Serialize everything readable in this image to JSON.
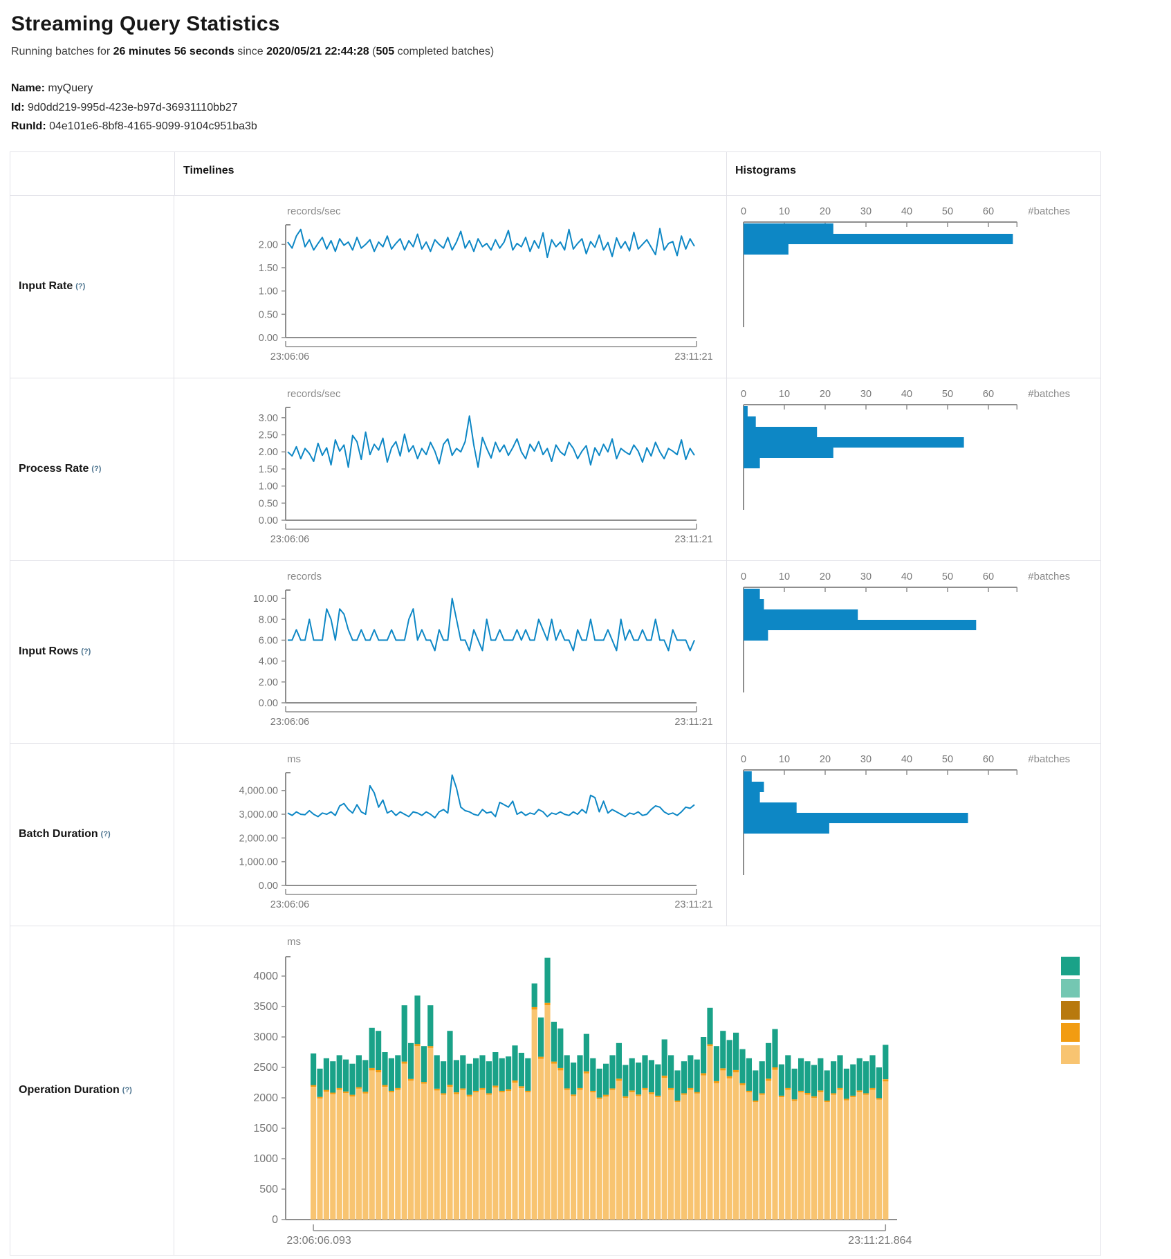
{
  "page": {
    "title": "Streaming Query Statistics",
    "subtitle": {
      "part1": "Running batches for ",
      "duration": "26 minutes 56 seconds",
      "part2": " since ",
      "start_time": "2020/05/21 22:44:28",
      "part3": " (",
      "completed_count": "505",
      "part4": " completed batches)"
    },
    "query": {
      "name_label": "Name:",
      "name_value": " myQuery",
      "id_label": "Id:",
      "id_value": " 9d0dd219-995d-423e-b97d-36931110bb27",
      "runid_label": "RunId:",
      "runid_value": " 04e101e6-8bf8-4165-9099-9104c951ba3b"
    }
  },
  "table": {
    "header_timelines": "Timelines",
    "header_histograms": "Histograms",
    "rows": [
      {
        "label": "Input Rate",
        "help": "(?)"
      },
      {
        "label": "Process Rate",
        "help": "(?)"
      },
      {
        "label": "Input Rows",
        "help": "(?)"
      },
      {
        "label": "Batch Duration",
        "help": "(?)"
      },
      {
        "label": "Operation Duration",
        "help": "(?)"
      }
    ]
  },
  "colors": {
    "blue": "#0d87c5",
    "axis": "#8e8e8e",
    "tick_text": "#767676",
    "unit_text": "#8a8a8a",
    "teal": "#1aa288",
    "light_teal": "#74c7b2",
    "brown": "#b8790e",
    "orange": "#f29c11",
    "light_orange": "#f8c471"
  },
  "chart_data": [
    {
      "type": "line",
      "id": "input_rate",
      "title": "Input Rate",
      "ylabel": "records/sec",
      "x_labels": [
        "23:06:06",
        "23:11:21"
      ],
      "ymax_axis": 2.42,
      "ylim": [
        0,
        2.42
      ],
      "ytick_values": [
        2,
        1.5,
        1,
        0.5,
        0
      ],
      "ytick_labels": [
        "2.00",
        "1.50",
        "1.00",
        "0.50",
        "0.00"
      ],
      "values": [
        2.05,
        1.92,
        2.18,
        2.32,
        1.95,
        2.1,
        1.88,
        2.02,
        2.15,
        1.9,
        2.08,
        1.85,
        2.12,
        1.98,
        2.05,
        1.88,
        2.15,
        1.92,
        2.0,
        2.1,
        1.85,
        2.05,
        1.95,
        2.18,
        1.9,
        2.02,
        2.12,
        1.88,
        2.08,
        1.95,
        2.22,
        1.9,
        2.05,
        1.85,
        2.1,
        2.0,
        1.92,
        2.15,
        1.88,
        2.05,
        2.28,
        1.92,
        2.08,
        1.85,
        2.12,
        1.95,
        2.02,
        1.88,
        2.1,
        1.92,
        2.05,
        2.3,
        1.88,
        2.02,
        1.95,
        2.15,
        1.85,
        2.08,
        1.92,
        2.25,
        1.72,
        2.1,
        1.95,
        2.05,
        1.88,
        2.32,
        1.9,
        2.02,
        2.12,
        1.8,
        2.06,
        1.94,
        2.2,
        1.88,
        2.04,
        1.74,
        2.14,
        1.92,
        2.06,
        1.86,
        2.26,
        1.9,
        2.0,
        2.1,
        1.94,
        1.78,
        2.34,
        1.88,
        2.02,
        2.06,
        1.76,
        2.18,
        1.9,
        2.12,
        1.96
      ]
    },
    {
      "type": "bar-h",
      "id": "input_rate_hist",
      "xlabel": "#batches",
      "xticks": [
        0,
        10,
        20,
        30,
        40,
        50,
        60
      ],
      "xmax": 67,
      "bars": [
        22,
        66,
        11
      ]
    },
    {
      "type": "line",
      "id": "process_rate",
      "title": "Process Rate",
      "ylabel": "records/sec",
      "x_labels": [
        "23:06:06",
        "23:11:21"
      ],
      "ymax_axis": 3.3,
      "ylim": [
        0,
        3.3
      ],
      "ytick_values": [
        3,
        2.5,
        2,
        1.5,
        1,
        0.5,
        0
      ],
      "ytick_labels": [
        "3.00",
        "2.50",
        "2.00",
        "1.50",
        "1.00",
        "0.50",
        "0.00"
      ],
      "values": [
        2.0,
        1.88,
        2.15,
        1.8,
        2.1,
        1.95,
        1.72,
        2.25,
        1.9,
        2.12,
        1.62,
        2.35,
        2.02,
        2.2,
        1.55,
        2.48,
        2.3,
        1.78,
        2.58,
        1.92,
        2.22,
        2.05,
        2.4,
        1.7,
        2.12,
        2.3,
        1.88,
        2.52,
        2.0,
        2.18,
        1.8,
        2.1,
        1.92,
        2.28,
        2.02,
        1.65,
        2.22,
        2.38,
        1.9,
        2.1,
        2.0,
        2.3,
        3.05,
        2.2,
        1.55,
        2.42,
        2.1,
        1.82,
        2.28,
        2.0,
        2.2,
        1.9,
        2.12,
        2.38,
        2.0,
        1.8,
        2.22,
        2.02,
        2.3,
        1.92,
        2.1,
        1.72,
        2.2,
        2.0,
        1.9,
        2.28,
        2.1,
        1.8,
        2.02,
        2.18,
        1.62,
        2.12,
        1.9,
        2.22,
        2.0,
        2.38,
        1.8,
        2.1,
        2.0,
        1.92,
        2.2,
        2.02,
        1.7,
        2.12,
        1.88,
        2.28,
        2.0,
        1.8,
        2.1,
        2.02,
        1.92,
        2.35,
        1.78,
        2.1,
        1.9
      ]
    },
    {
      "type": "bar-h",
      "id": "process_rate_hist",
      "xlabel": "#batches",
      "xticks": [
        0,
        10,
        20,
        30,
        40,
        50,
        60
      ],
      "xmax": 67,
      "bars": [
        1,
        3,
        18,
        54,
        22,
        4
      ]
    },
    {
      "type": "line",
      "id": "input_rows",
      "title": "Input Rows",
      "ylabel": "records",
      "x_labels": [
        "23:06:06",
        "23:11:21"
      ],
      "ymax_axis": 10.8,
      "ylim": [
        0,
        10.8
      ],
      "ytick_values": [
        10,
        8,
        6,
        4,
        2,
        0
      ],
      "ytick_labels": [
        "10.00",
        "8.00",
        "6.00",
        "4.00",
        "2.00",
        "0.00"
      ],
      "values": [
        6,
        6,
        7,
        6,
        6,
        8,
        6,
        6,
        6,
        9,
        8,
        6,
        9,
        8.5,
        7,
        6,
        6,
        7,
        6,
        6,
        7,
        6,
        6,
        6,
        7,
        6,
        6,
        6,
        8,
        9,
        6,
        7,
        6,
        6,
        5,
        7,
        6,
        6,
        10,
        8,
        6,
        6,
        5,
        7,
        6,
        5,
        8,
        6,
        6,
        7,
        6,
        6,
        6,
        7,
        6,
        7,
        6,
        6,
        8,
        7,
        6,
        8,
        6,
        7,
        6,
        6,
        5,
        7,
        6,
        6,
        8,
        6,
        6,
        6,
        7,
        6,
        5,
        8,
        6,
        7,
        6,
        6,
        7,
        6,
        6,
        8,
        6,
        6,
        5,
        7,
        6,
        6,
        6,
        5,
        6
      ]
    },
    {
      "type": "bar-h",
      "id": "input_rows_hist",
      "xlabel": "#batches",
      "xticks": [
        0,
        10,
        20,
        30,
        40,
        50,
        60
      ],
      "xmax": 67,
      "bars": [
        4,
        5,
        28,
        57,
        6
      ]
    },
    {
      "type": "line",
      "id": "batch_duration",
      "title": "Batch Duration",
      "ylabel": "ms",
      "x_labels": [
        "23:06:06",
        "23:11:21"
      ],
      "ymax_axis": 4750,
      "ylim": [
        0,
        4750
      ],
      "ytick_values": [
        4000,
        3000,
        2000,
        1000,
        0
      ],
      "ytick_labels": [
        "4,000.00",
        "3,000.00",
        "2,000.00",
        "1,000.00",
        "0.00"
      ],
      "values": [
        3050,
        2950,
        3100,
        3000,
        2980,
        3150,
        3000,
        2900,
        3050,
        3000,
        3100,
        2950,
        3350,
        3450,
        3200,
        3050,
        3400,
        3100,
        3000,
        4200,
        3900,
        3300,
        3600,
        3050,
        3150,
        2950,
        3100,
        3000,
        2900,
        3100,
        3050,
        2950,
        3100,
        3000,
        2850,
        3100,
        3200,
        3050,
        4650,
        4100,
        3300,
        3150,
        3100,
        3000,
        2950,
        3200,
        3050,
        3100,
        2900,
        3500,
        3400,
        3300,
        3550,
        3000,
        3100,
        2950,
        3050,
        3000,
        3200,
        3100,
        2900,
        3050,
        3000,
        3100,
        3000,
        2950,
        3100,
        3000,
        3200,
        3050,
        3800,
        3700,
        3100,
        3550,
        3050,
        3200,
        3100,
        3000,
        2900,
        3050,
        3000,
        3100,
        2950,
        3000,
        3200,
        3350,
        3300,
        3100,
        3000,
        3050,
        2950,
        3100,
        3300,
        3250,
        3400
      ]
    },
    {
      "type": "bar-h",
      "id": "batch_duration_hist",
      "xlabel": "#batches",
      "xticks": [
        0,
        10,
        20,
        30,
        40,
        50,
        60
      ],
      "xmax": 67,
      "bars": [
        2,
        5,
        4,
        13,
        55,
        21
      ]
    },
    {
      "type": "stacked-bar",
      "id": "operation_duration",
      "title": "Operation Duration",
      "ylabel": "ms",
      "x_labels": [
        "23:06:06.093",
        "23:11:21.864"
      ],
      "ylim": [
        0,
        4400
      ],
      "ytick_values": [
        4000,
        3500,
        3000,
        2500,
        2000,
        1500,
        1000,
        500,
        0
      ],
      "ytick_labels": [
        "4000",
        "3500",
        "3000",
        "2500",
        "2000",
        "1500",
        "1000",
        "500",
        "0"
      ],
      "series_colors": [
        "light_orange",
        "orange",
        "teal"
      ],
      "legend_swatches": [
        "teal",
        "light_teal",
        "brown",
        "orange",
        "light_orange"
      ],
      "values": [
        [
          2180,
          30,
          520
        ],
        [
          1990,
          25,
          465
        ],
        [
          2100,
          30,
          520
        ],
        [
          2060,
          25,
          515
        ],
        [
          2130,
          30,
          540
        ],
        [
          2080,
          25,
          525
        ],
        [
          2020,
          30,
          510
        ],
        [
          2150,
          25,
          525
        ],
        [
          2070,
          30,
          520
        ],
        [
          2450,
          40,
          660
        ],
        [
          2420,
          35,
          645
        ],
        [
          2180,
          30,
          540
        ],
        [
          2090,
          25,
          535
        ],
        [
          2130,
          30,
          540
        ],
        [
          2560,
          35,
          925
        ],
        [
          2280,
          30,
          590
        ],
        [
          2850,
          35,
          795
        ],
        [
          2230,
          30,
          590
        ],
        [
          2820,
          30,
          670
        ],
        [
          2120,
          30,
          550
        ],
        [
          2050,
          25,
          525
        ],
        [
          2180,
          35,
          885
        ],
        [
          2060,
          30,
          530
        ],
        [
          2130,
          25,
          545
        ],
        [
          2020,
          30,
          510
        ],
        [
          2090,
          25,
          535
        ],
        [
          2130,
          30,
          540
        ],
        [
          2050,
          25,
          525
        ],
        [
          2170,
          30,
          550
        ],
        [
          2090,
          25,
          535
        ],
        [
          2110,
          30,
          540
        ],
        [
          2250,
          35,
          575
        ],
        [
          2160,
          30,
          550
        ],
        [
          2090,
          25,
          535
        ],
        [
          3450,
          40,
          390
        ],
        [
          2640,
          35,
          645
        ],
        [
          3520,
          40,
          740
        ],
        [
          2560,
          35,
          655
        ],
        [
          2450,
          40,
          650
        ],
        [
          2130,
          25,
          545
        ],
        [
          2030,
          25,
          525
        ],
        [
          2130,
          30,
          540
        ],
        [
          2400,
          35,
          615
        ],
        [
          2090,
          25,
          535
        ],
        [
          1980,
          25,
          475
        ],
        [
          2020,
          30,
          510
        ],
        [
          2130,
          25,
          545
        ],
        [
          2280,
          35,
          585
        ],
        [
          2000,
          25,
          515
        ],
        [
          2090,
          30,
          530
        ],
        [
          2030,
          25,
          525
        ],
        [
          2130,
          30,
          540
        ],
        [
          2060,
          30,
          530
        ],
        [
          2010,
          25,
          515
        ],
        [
          2330,
          35,
          595
        ],
        [
          2130,
          30,
          540
        ],
        [
          1930,
          25,
          495
        ],
        [
          2050,
          25,
          525
        ],
        [
          2130,
          30,
          540
        ],
        [
          2070,
          25,
          535
        ],
        [
          2370,
          35,
          595
        ],
        [
          2850,
          30,
          600
        ],
        [
          2240,
          35,
          575
        ],
        [
          2450,
          35,
          615
        ],
        [
          2320,
          35,
          595
        ],
        [
          2420,
          35,
          615
        ],
        [
          2210,
          30,
          560
        ],
        [
          2090,
          25,
          535
        ],
        [
          1930,
          25,
          495
        ],
        [
          2050,
          25,
          525
        ],
        [
          2280,
          35,
          585
        ],
        [
          2460,
          40,
          630
        ],
        [
          2010,
          25,
          515
        ],
        [
          2130,
          30,
          540
        ],
        [
          1950,
          25,
          505
        ],
        [
          2090,
          25,
          535
        ],
        [
          2050,
          30,
          520
        ],
        [
          2000,
          25,
          515
        ],
        [
          2090,
          30,
          530
        ],
        [
          1930,
          25,
          495
        ],
        [
          2050,
          25,
          525
        ],
        [
          2130,
          30,
          540
        ],
        [
          1960,
          25,
          495
        ],
        [
          2010,
          25,
          515
        ],
        [
          2090,
          30,
          530
        ],
        [
          2050,
          25,
          525
        ],
        [
          2130,
          30,
          540
        ],
        [
          1970,
          25,
          505
        ],
        [
          2270,
          35,
          565
        ]
      ]
    }
  ]
}
